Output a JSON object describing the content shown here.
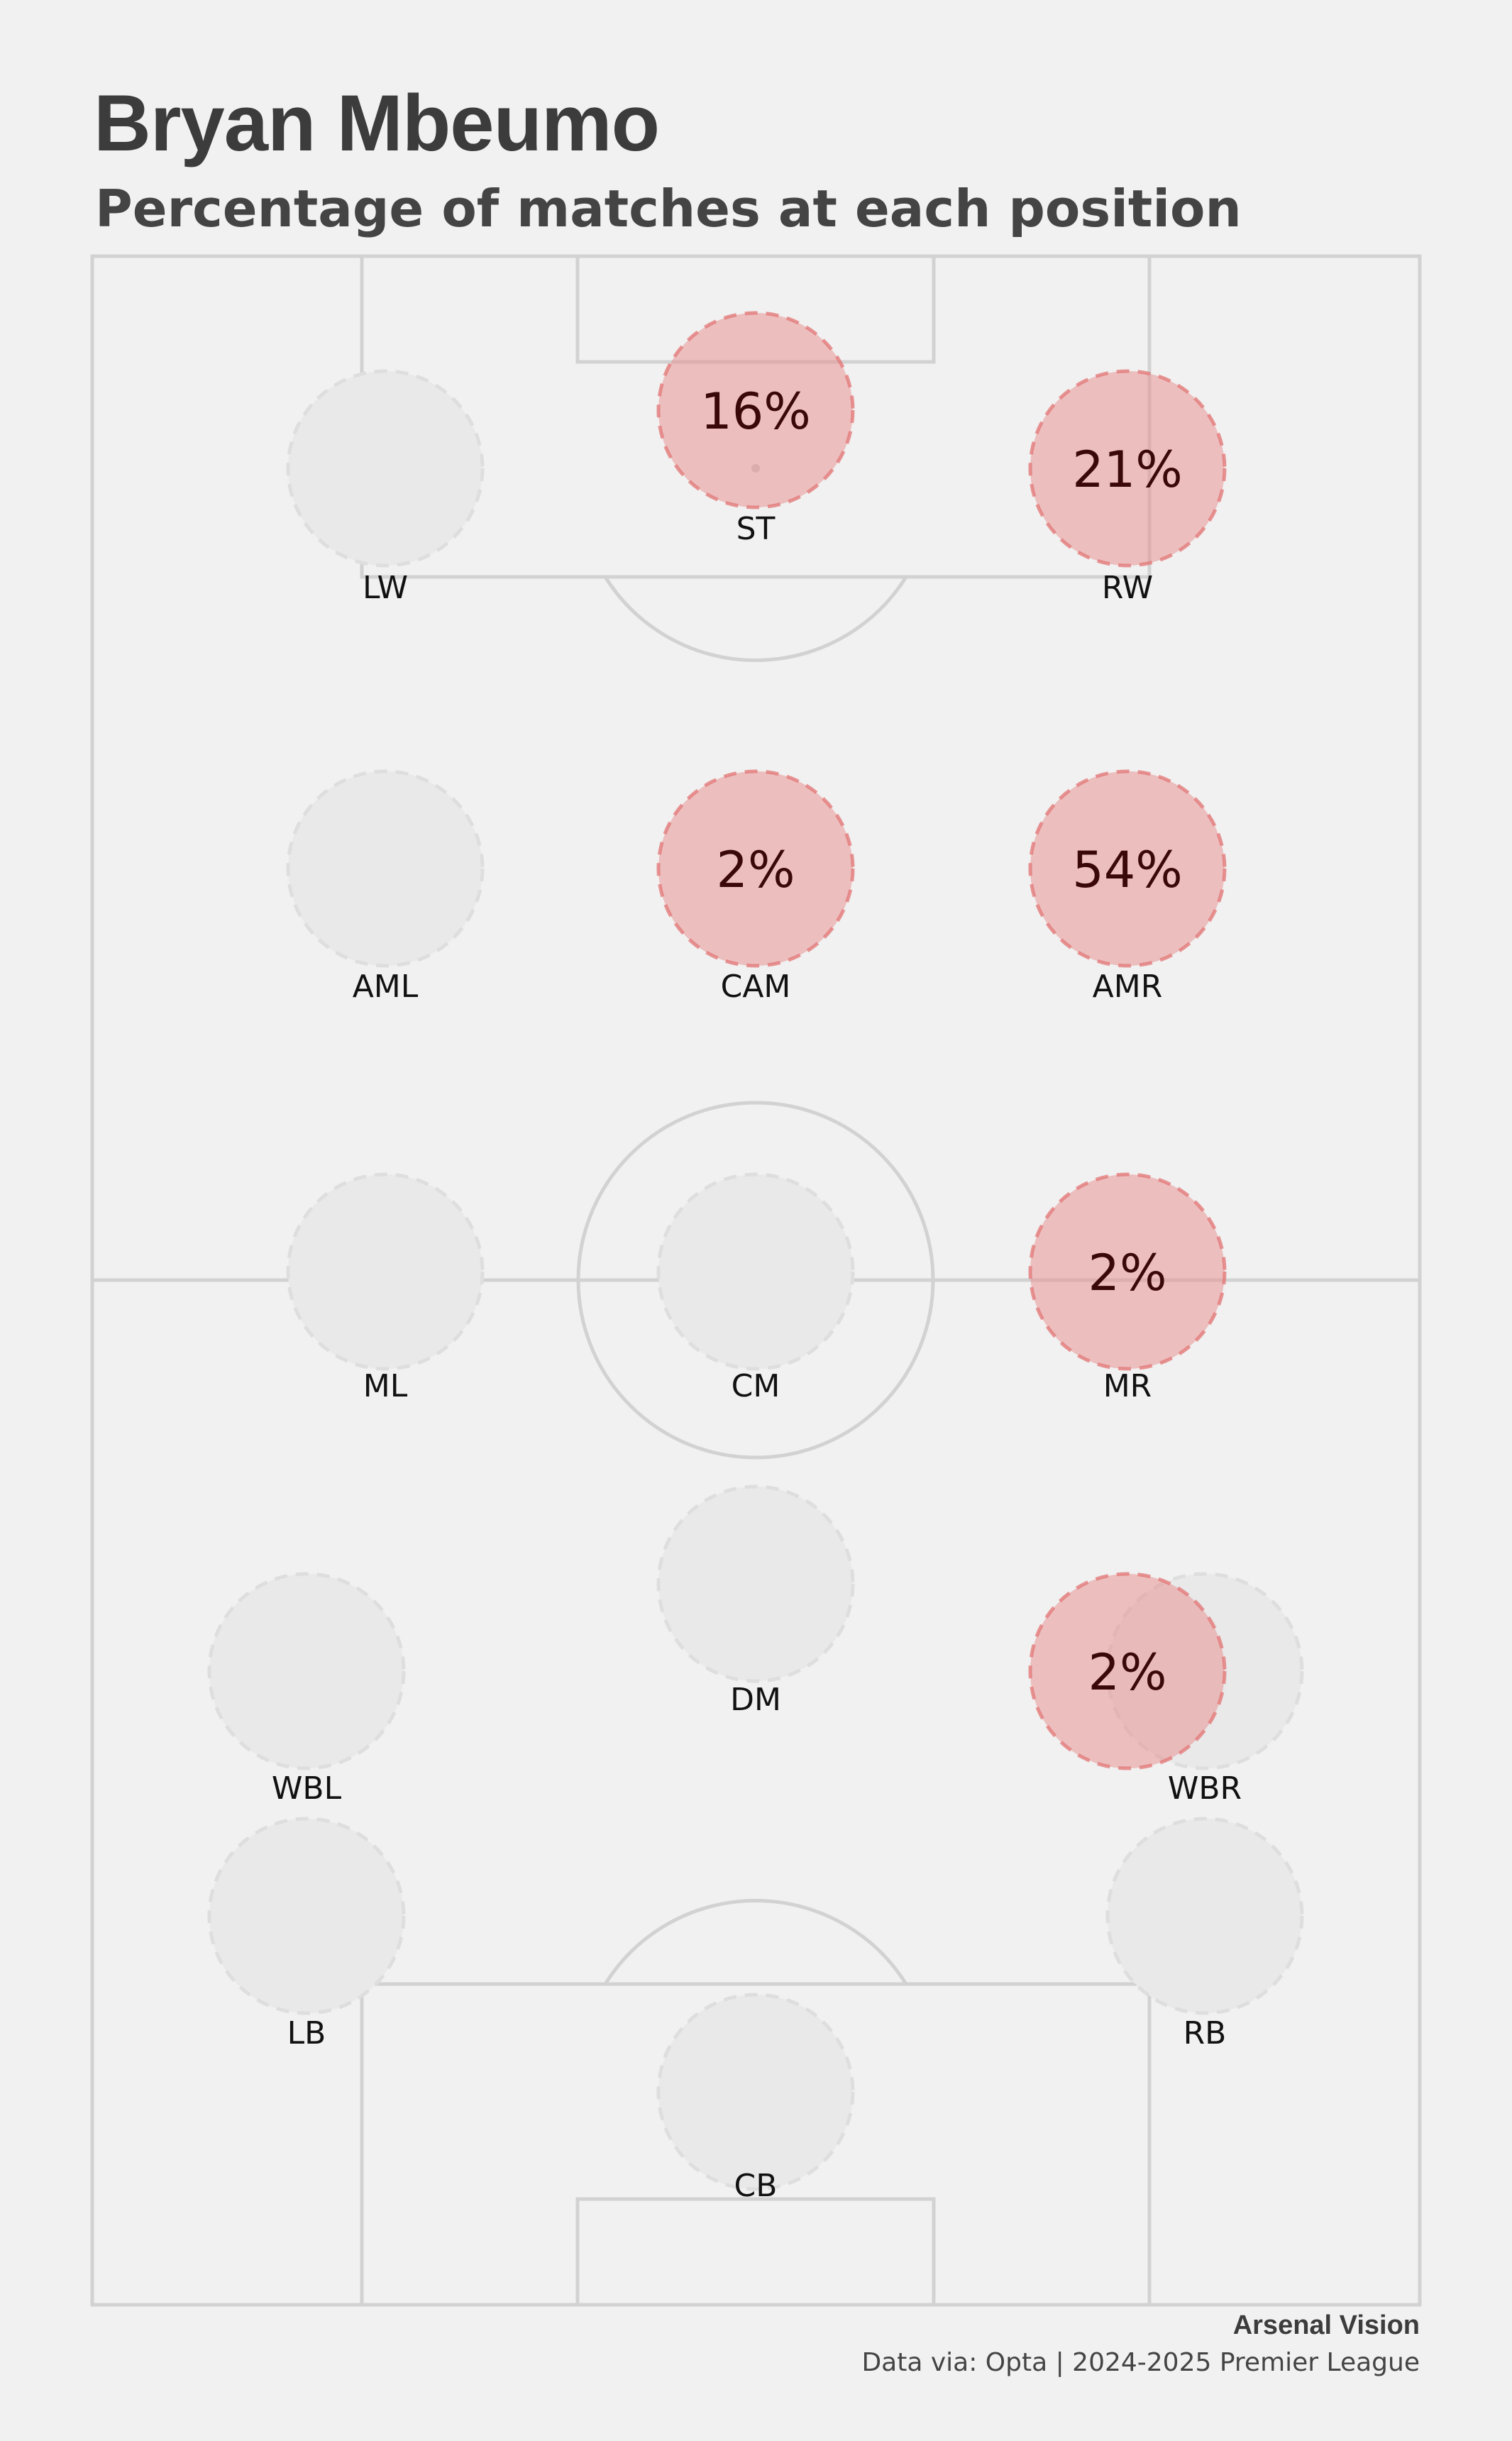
{
  "title": "Bryan Mbeumo",
  "subtitle": "Percentage of matches at each position",
  "footer": {
    "brand": "Arsenal Vision",
    "source": "Data via: Opta | 2024-2025 Premier League"
  },
  "colors": {
    "background": "#f1f1f1",
    "pitch_line": "#d2d2d2",
    "active_fill": "#e88c8c",
    "active_stroke": "#e47a7a",
    "inactive_fill": "#e9e9e9",
    "inactive_stroke": "#dedede",
    "value_text": "#3a0808",
    "label_text": "#111111"
  },
  "chart_data": {
    "type": "bubble-pitch",
    "unit": "%",
    "positions": [
      {
        "pos": "LW",
        "value": 0
      },
      {
        "pos": "ST",
        "value": 16
      },
      {
        "pos": "RW",
        "value": 21
      },
      {
        "pos": "AML",
        "value": 0
      },
      {
        "pos": "CAM",
        "value": 2
      },
      {
        "pos": "AMR",
        "value": 54
      },
      {
        "pos": "ML",
        "value": 0
      },
      {
        "pos": "CM",
        "value": 0
      },
      {
        "pos": "MR",
        "value": 2
      },
      {
        "pos": "DM",
        "value": 0
      },
      {
        "pos": "WBL",
        "value": 0
      },
      {
        "pos": "WBR",
        "value": 0
      },
      {
        "pos": "AMR-WB",
        "value": 2,
        "hidden_label": true
      },
      {
        "pos": "LB",
        "value": 0
      },
      {
        "pos": "RB",
        "value": 0
      },
      {
        "pos": "CB",
        "value": 0
      }
    ]
  }
}
